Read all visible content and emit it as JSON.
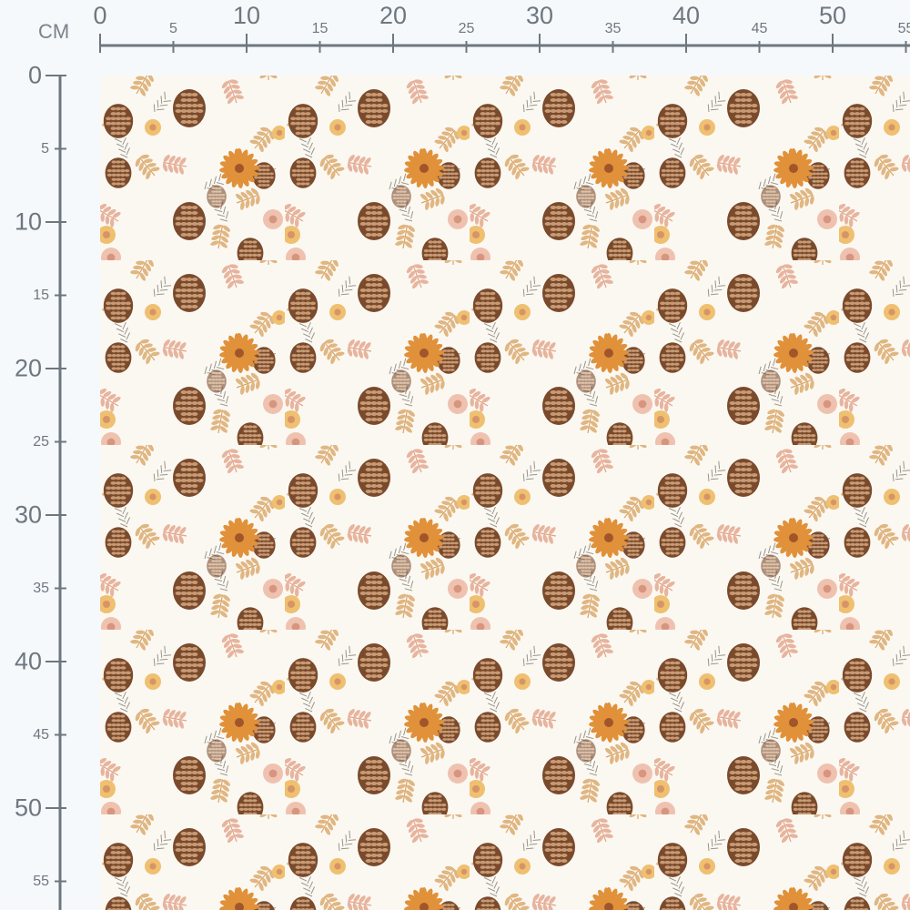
{
  "ruler": {
    "unit": "CM",
    "horizontal_labels": [
      "0",
      "5",
      "10",
      "15",
      "20",
      "25",
      "30",
      "35",
      "40",
      "45",
      "50",
      "55"
    ],
    "vertical_labels": [
      "0",
      "5",
      "10",
      "15",
      "20",
      "25",
      "30",
      "35",
      "40",
      "45",
      "50",
      "55"
    ],
    "color": "#6e7780"
  },
  "fabric": {
    "background": "#fbf8f2",
    "motifs": [
      "pinecone",
      "orange-dahlia",
      "pink-rose",
      "yellow-rose",
      "autumn-leaves",
      "pine-sprigs"
    ],
    "colors": {
      "pinecone": "#7a4a2c",
      "dahlia": "#e0913a",
      "rose": "#efc2b0",
      "yellow": "#efc070",
      "leaf": "#d9a566",
      "pinkleaf": "#e2a38a"
    }
  }
}
